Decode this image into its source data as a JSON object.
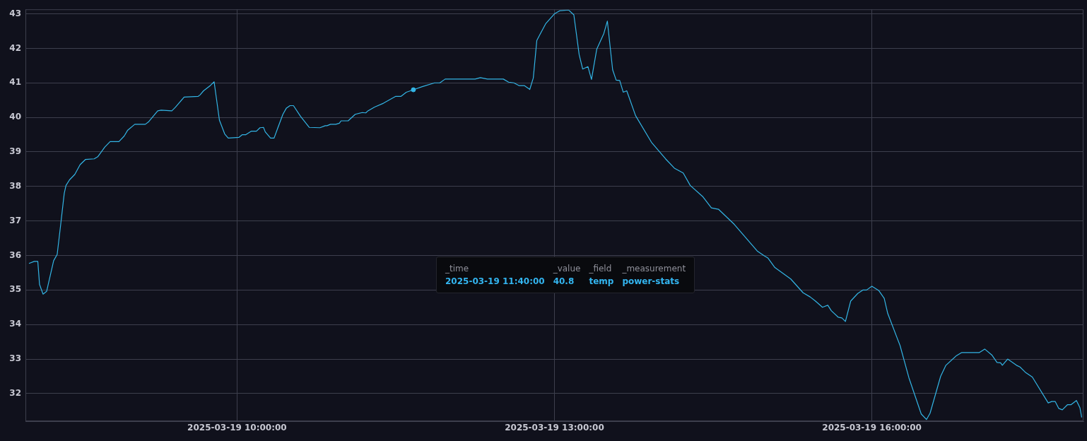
{
  "chart_data": {
    "type": "line",
    "x": [
      "2025-03-19T08:02",
      "2025-03-19T08:05",
      "2025-03-19T08:07",
      "2025-03-19T08:08",
      "2025-03-19T08:10",
      "2025-03-19T08:12",
      "2025-03-19T08:16",
      "2025-03-19T08:18",
      "2025-03-19T08:20",
      "2025-03-19T08:22",
      "2025-03-19T08:23",
      "2025-03-19T08:25",
      "2025-03-19T08:28",
      "2025-03-19T08:31",
      "2025-03-19T08:34",
      "2025-03-19T08:39",
      "2025-03-19T08:41",
      "2025-03-19T08:45",
      "2025-03-19T08:48",
      "2025-03-19T08:53",
      "2025-03-19T08:56",
      "2025-03-19T08:58",
      "2025-03-19T09:02",
      "2025-03-19T09:08",
      "2025-03-19T09:10",
      "2025-03-19T09:15",
      "2025-03-19T09:17",
      "2025-03-19T09:23",
      "2025-03-19T09:25",
      "2025-03-19T09:30",
      "2025-03-19T09:38",
      "2025-03-19T09:39",
      "2025-03-19T09:41",
      "2025-03-19T09:45",
      "2025-03-19T09:47",
      "2025-03-19T09:50",
      "2025-03-19T09:53",
      "2025-03-19T09:55",
      "2025-03-19T10:01",
      "2025-03-19T10:03",
      "2025-03-19T10:05",
      "2025-03-19T10:08",
      "2025-03-19T10:11",
      "2025-03-19T10:13",
      "2025-03-19T10:15",
      "2025-03-19T10:16",
      "2025-03-19T10:19",
      "2025-03-19T10:21",
      "2025-03-19T10:23",
      "2025-03-19T10:26",
      "2025-03-19T10:28",
      "2025-03-19T10:30",
      "2025-03-19T10:32",
      "2025-03-19T10:36",
      "2025-03-19T10:41",
      "2025-03-19T10:47",
      "2025-03-19T10:50",
      "2025-03-19T10:51",
      "2025-03-19T10:53",
      "2025-03-19T10:56",
      "2025-03-19T10:58",
      "2025-03-19T10:59",
      "2025-03-19T11:03",
      "2025-03-19T11:07",
      "2025-03-19T11:11",
      "2025-03-19T11:13",
      "2025-03-19T11:14",
      "2025-03-19T11:18",
      "2025-03-19T11:23",
      "2025-03-19T11:30",
      "2025-03-19T11:33",
      "2025-03-19T11:36",
      "2025-03-19T11:40",
      "2025-03-19T11:45",
      "2025-03-19T11:52",
      "2025-03-19T11:55",
      "2025-03-19T11:58",
      "2025-03-19T12:15",
      "2025-03-19T12:18",
      "2025-03-19T12:22",
      "2025-03-19T12:31",
      "2025-03-19T12:34",
      "2025-03-19T12:37",
      "2025-03-19T12:40",
      "2025-03-19T12:43",
      "2025-03-19T12:46",
      "2025-03-19T12:48",
      "2025-03-19T12:50",
      "2025-03-19T12:55",
      "2025-03-19T13:00",
      "2025-03-19T13:03",
      "2025-03-19T13:08",
      "2025-03-19T13:11",
      "2025-03-19T13:14",
      "2025-03-19T13:16",
      "2025-03-19T13:19",
      "2025-03-19T13:21",
      "2025-03-19T13:24",
      "2025-03-19T13:28",
      "2025-03-19T13:30",
      "2025-03-19T13:33",
      "2025-03-19T13:35",
      "2025-03-19T13:37",
      "2025-03-19T13:39",
      "2025-03-19T13:41",
      "2025-03-19T13:46",
      "2025-03-19T13:55",
      "2025-03-19T14:03",
      "2025-03-19T14:08",
      "2025-03-19T14:13",
      "2025-03-19T14:17",
      "2025-03-19T14:24",
      "2025-03-19T14:29",
      "2025-03-19T14:33",
      "2025-03-19T14:42",
      "2025-03-19T14:44",
      "2025-03-19T14:55",
      "2025-03-19T14:59",
      "2025-03-19T15:01",
      "2025-03-19T15:05",
      "2025-03-19T15:14",
      "2025-03-19T15:21",
      "2025-03-19T15:25",
      "2025-03-19T15:28",
      "2025-03-19T15:32",
      "2025-03-19T15:35",
      "2025-03-19T15:37",
      "2025-03-19T15:41",
      "2025-03-19T15:43",
      "2025-03-19T15:45",
      "2025-03-19T15:48",
      "2025-03-19T15:52",
      "2025-03-19T15:55",
      "2025-03-19T15:57",
      "2025-03-19T16:00",
      "2025-03-19T16:04",
      "2025-03-19T16:07",
      "2025-03-19T16:09",
      "2025-03-19T16:16",
      "2025-03-19T16:21",
      "2025-03-19T16:28",
      "2025-03-19T16:31",
      "2025-03-19T16:33",
      "2025-03-19T16:39",
      "2025-03-19T16:42",
      "2025-03-19T16:48",
      "2025-03-19T16:51",
      "2025-03-19T17:01",
      "2025-03-19T17:04",
      "2025-03-19T17:08",
      "2025-03-19T17:11",
      "2025-03-19T17:13",
      "2025-03-19T17:14",
      "2025-03-19T17:17",
      "2025-03-19T17:22",
      "2025-03-19T17:24",
      "2025-03-19T17:27",
      "2025-03-19T17:31",
      "2025-03-19T17:40",
      "2025-03-19T17:42",
      "2025-03-19T17:44",
      "2025-03-19T17:46",
      "2025-03-19T17:48",
      "2025-03-19T17:51",
      "2025-03-19T17:53",
      "2025-03-19T17:56",
      "2025-03-19T17:58",
      "2025-03-19T17:59"
    ],
    "series": [
      {
        "color": "#33b5e5",
        "marker": "none",
        "values": [
          35.77,
          35.83,
          35.83,
          35.16,
          34.88,
          34.96,
          35.85,
          36.03,
          36.9,
          37.8,
          38.03,
          38.19,
          38.35,
          38.63,
          38.78,
          38.8,
          38.86,
          39.14,
          39.3,
          39.3,
          39.46,
          39.63,
          39.8,
          39.8,
          39.88,
          40.19,
          40.21,
          40.19,
          40.29,
          40.59,
          40.61,
          40.65,
          40.77,
          40.93,
          41.03,
          39.92,
          39.52,
          39.4,
          39.42,
          39.5,
          39.5,
          39.6,
          39.6,
          39.7,
          39.71,
          39.58,
          39.4,
          39.4,
          39.68,
          40.09,
          40.27,
          40.34,
          40.34,
          40.03,
          39.71,
          39.7,
          39.76,
          39.76,
          39.8,
          39.8,
          39.83,
          39.9,
          39.9,
          40.09,
          40.14,
          40.13,
          40.18,
          40.3,
          40.41,
          40.61,
          40.61,
          40.73,
          40.8,
          40.89,
          41.0,
          41.0,
          41.11,
          41.11,
          41.15,
          41.11,
          41.11,
          41.02,
          41.0,
          40.92,
          40.92,
          40.81,
          41.14,
          42.23,
          42.71,
          43.0,
          43.09,
          43.11,
          42.97,
          41.82,
          41.4,
          41.47,
          41.1,
          41.98,
          42.43,
          42.79,
          41.38,
          41.08,
          41.07,
          40.73,
          40.77,
          40.05,
          39.28,
          38.8,
          38.53,
          38.39,
          38.03,
          37.71,
          37.38,
          37.34,
          36.9,
          36.78,
          36.13,
          35.99,
          35.93,
          35.65,
          35.32,
          34.92,
          34.8,
          34.68,
          34.5,
          34.56,
          34.4,
          34.21,
          34.19,
          34.09,
          34.68,
          34.9,
          35.0,
          35.0,
          35.11,
          34.98,
          34.76,
          34.32,
          33.39,
          32.46,
          31.41,
          31.25,
          31.43,
          32.5,
          32.82,
          33.1,
          33.19,
          33.19,
          33.29,
          33.12,
          32.9,
          32.89,
          32.82,
          33.0,
          32.82,
          32.77,
          32.62,
          32.48,
          31.73,
          31.77,
          31.77,
          31.57,
          31.53,
          31.68,
          31.68,
          31.8,
          31.59,
          31.31
        ]
      },
      {
        "type": "scatter",
        "color": "#33b5e5",
        "marker": "circle",
        "x": [
          "2025-03-19T11:40"
        ],
        "values": [
          40.8
        ]
      }
    ],
    "xlim": [
      "2025-03-19T08:00",
      "2025-03-19T18:00"
    ],
    "xticks": [
      {
        "value": "2025-03-19T10:00",
        "label": "2025-03-19 10:00:00"
      },
      {
        "value": "2025-03-19T13:00",
        "label": "2025-03-19 13:00:00"
      },
      {
        "value": "2025-03-19T16:00",
        "label": "2025-03-19 16:00:00"
      }
    ],
    "ylim": [
      31.2,
      43.13
    ],
    "yticks": [
      32,
      33,
      34,
      35,
      36,
      37,
      38,
      39,
      40,
      41,
      42,
      43
    ],
    "grid": true,
    "legend": false,
    "line_style": "solid",
    "annotations": [
      "_time",
      "_value",
      "_field",
      "_measurement",
      "2025-03-19 11:40:00",
      "40.8",
      "temp",
      "power-stats"
    ]
  }
}
